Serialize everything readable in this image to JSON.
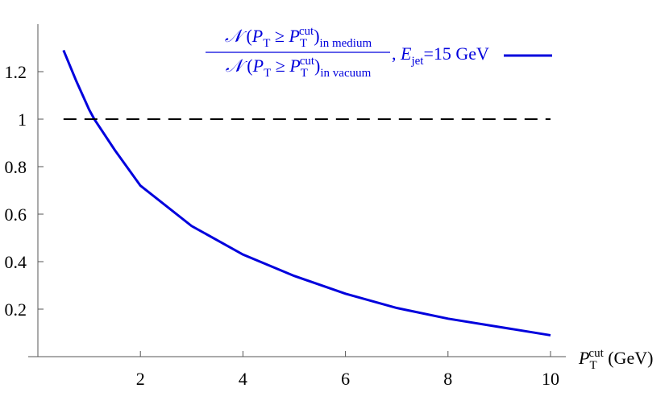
{
  "chart_data": {
    "type": "line",
    "xlim": [
      0,
      10.3
    ],
    "ylim": [
      0,
      1.4
    ],
    "xticks": [
      2,
      4,
      6,
      8,
      10
    ],
    "yticks": [
      0.2,
      0.4,
      0.6,
      0.8,
      1,
      1.2
    ],
    "x_label": [
      {
        "t": "P",
        "s": "i"
      },
      {
        "t": "T",
        "s": "sub"
      },
      {
        "t": "cut",
        "s": "sup"
      },
      {
        "t": " (GeV)"
      }
    ],
    "legend": {
      "numerator": [
        {
          "t": "𝒩",
          "s": "i"
        },
        {
          "t": " ("
        },
        {
          "t": "P",
          "s": "i"
        },
        {
          "t": "T",
          "s": "sub"
        },
        {
          "t": " ≥ "
        },
        {
          "t": "P",
          "s": "i"
        },
        {
          "t": "T",
          "s": "sub"
        },
        {
          "t": "cut",
          "s": "sup"
        },
        {
          "t": ")"
        },
        {
          "t": "in medium",
          "s": "sub"
        }
      ],
      "denominator": [
        {
          "t": "𝒩",
          "s": "i"
        },
        {
          "t": " ("
        },
        {
          "t": "P",
          "s": "i"
        },
        {
          "t": "T",
          "s": "sub"
        },
        {
          "t": " ≥ "
        },
        {
          "t": "P",
          "s": "i"
        },
        {
          "t": "T",
          "s": "sub"
        },
        {
          "t": "cut",
          "s": "sup"
        },
        {
          "t": ")"
        },
        {
          "t": "in vacuum",
          "s": "sub"
        }
      ],
      "suffix": [
        {
          "t": ", "
        },
        {
          "t": "E",
          "s": "i"
        },
        {
          "t": "jet",
          "s": "sub"
        },
        {
          "t": "=15 GeV"
        }
      ]
    },
    "series": [
      {
        "color": "#0000dd",
        "dashed": false,
        "x": [
          0.5,
          0.75,
          1,
          1.1,
          1.5,
          2,
          3,
          4,
          5,
          6,
          7,
          8,
          9,
          10
        ],
        "values": [
          1.29,
          1.16,
          1.04,
          1.0,
          0.87,
          0.72,
          0.55,
          0.43,
          0.34,
          0.265,
          0.205,
          0.16,
          0.125,
          0.09
        ]
      },
      {
        "color": "#000000",
        "dashed": true,
        "x": [
          0.5,
          10
        ],
        "values": [
          1,
          1
        ]
      }
    ]
  }
}
